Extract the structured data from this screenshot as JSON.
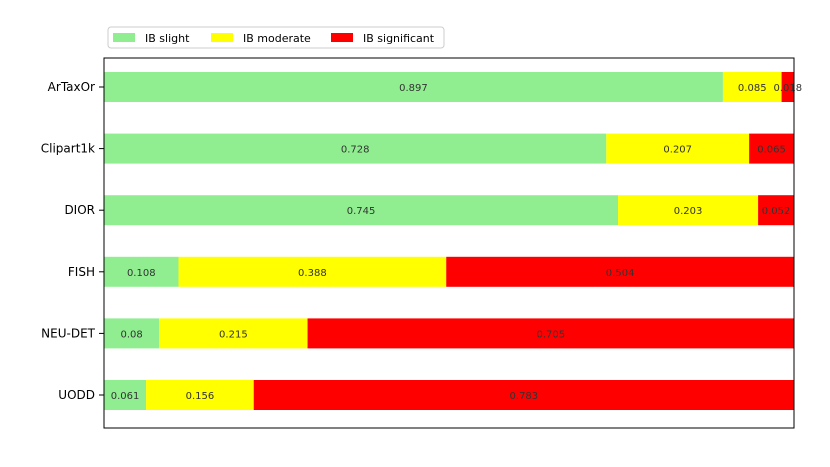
{
  "chart_data": {
    "type": "bar",
    "orientation": "horizontal",
    "stacked": true,
    "normalized": true,
    "categories": [
      "ArTaxOr",
      "Clipart1k",
      "DIOR",
      "FISH",
      "NEU-DET",
      "UODD"
    ],
    "series": [
      {
        "name": "IB slight",
        "color": "#90EE90",
        "values": [
          0.897,
          0.728,
          0.745,
          0.108,
          0.08,
          0.061
        ]
      },
      {
        "name": "IB moderate",
        "color": "#FFFF00",
        "values": [
          0.085,
          0.207,
          0.203,
          0.388,
          0.215,
          0.156
        ]
      },
      {
        "name": "IB significant",
        "color": "#FF0000",
        "values": [
          0.018,
          0.065,
          0.052,
          0.504,
          0.705,
          0.783
        ]
      }
    ],
    "xlim": [
      0,
      1
    ],
    "grid": false,
    "legend_position": "top-left, outside",
    "title": "",
    "xlabel": "",
    "ylabel": ""
  }
}
